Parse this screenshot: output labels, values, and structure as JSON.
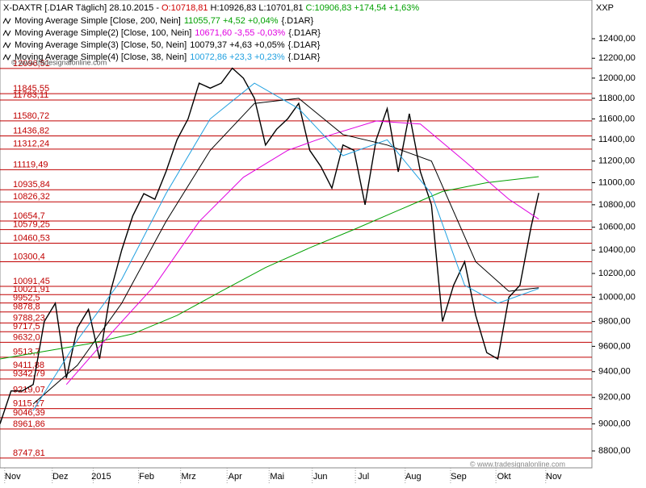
{
  "header": {
    "symbol": "X-DAXTR [.D1AR  Täglich] 28.10.2015 -",
    "open": "O:10718,81",
    "high_low": "H:10926,83 L:10701,81",
    "close": "C:10906,83 +174,54 +1,63%",
    "unit": "XXP",
    "watermark": "© www.tradesignalonline.com"
  },
  "chart_data": {
    "type": "line",
    "log_scale": true,
    "xlim": [
      0,
      53.5
    ],
    "xticks": [
      {
        "value": 1.3,
        "label": "Nov"
      },
      {
        "value": 5.6,
        "label": "Dez"
      },
      {
        "value": 9.3,
        "label": "2015"
      },
      {
        "value": 13.4,
        "label": "Feb"
      },
      {
        "value": 17.2,
        "label": "Mrz"
      },
      {
        "value": 21.4,
        "label": "Apr"
      },
      {
        "value": 25.2,
        "label": "Mai"
      },
      {
        "value": 29.1,
        "label": "Jun"
      },
      {
        "value": 33.0,
        "label": "Jul"
      },
      {
        "value": 37.5,
        "label": "Aug"
      },
      {
        "value": 41.6,
        "label": "Sep"
      },
      {
        "value": 45.7,
        "label": "Okt"
      },
      {
        "value": 50.2,
        "label": "Nov"
      }
    ],
    "ylim": [
      8677,
      12806
    ],
    "yticks": [
      {
        "value": 8800,
        "label": "8800,00"
      },
      {
        "value": 9000,
        "label": "9000,00"
      },
      {
        "value": 9200,
        "label": "9200,00"
      },
      {
        "value": 9400,
        "label": "9400,00"
      },
      {
        "value": 9600,
        "label": "9600,00"
      },
      {
        "value": 9800,
        "label": "9800,00"
      },
      {
        "value": 10000,
        "label": "10000,00"
      },
      {
        "value": 10200,
        "label": "10200,00"
      },
      {
        "value": 10400,
        "label": "10400,00"
      },
      {
        "value": 10600,
        "label": "10600,00"
      },
      {
        "value": 10800,
        "label": "10800,00"
      },
      {
        "value": 11000,
        "label": "11000,00"
      },
      {
        "value": 11200,
        "label": "11200,00"
      },
      {
        "value": 11400,
        "label": "11400,00"
      },
      {
        "value": 11600,
        "label": "11600,00"
      },
      {
        "value": 11800,
        "label": "11800,00"
      },
      {
        "value": 12000,
        "label": "12000,00"
      },
      {
        "value": 12200,
        "label": "12200,00"
      },
      {
        "value": 12400,
        "label": "12400,00"
      }
    ],
    "levels": [
      {
        "value": 12096.51,
        "label": "12096,51"
      },
      {
        "value": 11845.55,
        "label": "11845,55"
      },
      {
        "value": 11783.11,
        "label": "11783,11"
      },
      {
        "value": 11580.72,
        "label": "11580,72"
      },
      {
        "value": 11436.82,
        "label": "11436,82"
      },
      {
        "value": 11312.24,
        "label": "11312,24"
      },
      {
        "value": 11119.49,
        "label": "11119,49"
      },
      {
        "value": 10935.84,
        "label": "10935,84"
      },
      {
        "value": 10826.32,
        "label": "10826,32"
      },
      {
        "value": 10654.7,
        "label": "10654,7"
      },
      {
        "value": 10579.25,
        "label": "10579,25"
      },
      {
        "value": 10460.53,
        "label": "10460,53"
      },
      {
        "value": 10300.4,
        "label": "10300,4"
      },
      {
        "value": 10091.45,
        "label": "10091,45"
      },
      {
        "value": 10021.91,
        "label": "10021,91"
      },
      {
        "value": 9952.5,
        "label": "9952,5"
      },
      {
        "value": 9878.8,
        "label": "9878,8"
      },
      {
        "value": 9788.23,
        "label": "9788,23"
      },
      {
        "value": 9717.5,
        "label": "9717,5"
      },
      {
        "value": 9632.0,
        "label": "9632,0"
      },
      {
        "value": 9513.7,
        "label": "9513,7"
      },
      {
        "value": 9411.88,
        "label": "9411,88"
      },
      {
        "value": 9342.79,
        "label": "9342,79"
      },
      {
        "value": 9219.07,
        "label": "9219,07"
      },
      {
        "value": 9115.17,
        "label": "9115,17"
      },
      {
        "value": 9046.39,
        "label": "9046,39"
      },
      {
        "value": 8961.86,
        "label": "8961,86"
      },
      {
        "value": 8747.81,
        "label": "8747,81"
      }
    ],
    "level_color": "#c00000",
    "series": [
      {
        "color": "#000000",
        "x": [
          0,
          1,
          2,
          3,
          4,
          5,
          6,
          7,
          8,
          9,
          10,
          11,
          12,
          13,
          14,
          15,
          16,
          17,
          18,
          19,
          20,
          21,
          22,
          23,
          24,
          25,
          26,
          27,
          28,
          29,
          30,
          31,
          32,
          33,
          34,
          35,
          36,
          37,
          38,
          39,
          40,
          41,
          42,
          43,
          44,
          45,
          46,
          47,
          48,
          48.7
        ],
        "values": [
          9000,
          9250,
          9250,
          9300,
          9800,
          9950,
          9350,
          9750,
          9900,
          9500,
          10050,
          10400,
          10700,
          10900,
          10850,
          11100,
          11400,
          11600,
          11950,
          11900,
          11950,
          12100,
          12000,
          11800,
          11350,
          11500,
          11600,
          11750,
          11300,
          11150,
          10950,
          11350,
          11300,
          10800,
          11400,
          11700,
          11100,
          11650,
          11100,
          10800,
          9800,
          10100,
          10300,
          9850,
          9550,
          9500,
          10000,
          10100,
          10600,
          10906.83
        ]
      },
      {
        "name": "Moving Average Simple [Close, 200, Nein]",
        "value_text": "11055,77 +4,52 +0,04%",
        "suffix": "{.D1AR}",
        "color": "#00a000",
        "x": [
          0,
          8,
          12,
          16,
          20,
          24,
          28,
          32,
          36,
          40,
          44,
          48.7
        ],
        "values": [
          9500,
          9620,
          9700,
          9850,
          10050,
          10250,
          10420,
          10580,
          10750,
          10920,
          11000,
          11055.77
        ]
      },
      {
        "name": "Moving Average Simple(2) [Close, 100, Nein]",
        "value_text": "10671,60 -3,55 -0,03%",
        "suffix": "{.D1AR}",
        "color": "#e000e0",
        "x": [
          6,
          10,
          14,
          18,
          22,
          26,
          30,
          34,
          38,
          42,
          46,
          48.7
        ],
        "values": [
          9300,
          9700,
          10100,
          10650,
          11050,
          11300,
          11450,
          11580,
          11550,
          11200,
          10850,
          10671.6
        ]
      },
      {
        "name": "Moving Average Simple(3) [Close, 50, Nein]",
        "value_text": "10079,37 +4,63 +0,05%",
        "suffix": "{.D1AR}",
        "color": "#000000",
        "x": [
          3,
          7,
          11,
          15,
          19,
          23,
          27,
          31,
          35,
          39,
          43,
          46,
          48.7
        ],
        "values": [
          9150,
          9450,
          9950,
          10650,
          11300,
          11750,
          11800,
          11450,
          11350,
          11200,
          10300,
          10050,
          10079.37
        ]
      },
      {
        "name": "Moving Average Simple(4) [Close, 38, Nein]",
        "value_text": "10072,86 +23,3 +0,23%",
        "suffix": "{.D1AR}",
        "color": "#20a0e0",
        "x": [
          3,
          7,
          11,
          15,
          19,
          23,
          27,
          31,
          35,
          39,
          42,
          45,
          48.7
        ],
        "values": [
          9100,
          9650,
          10150,
          10900,
          11600,
          11950,
          11700,
          11250,
          11400,
          10900,
          10100,
          9950,
          10072.86
        ]
      }
    ]
  }
}
